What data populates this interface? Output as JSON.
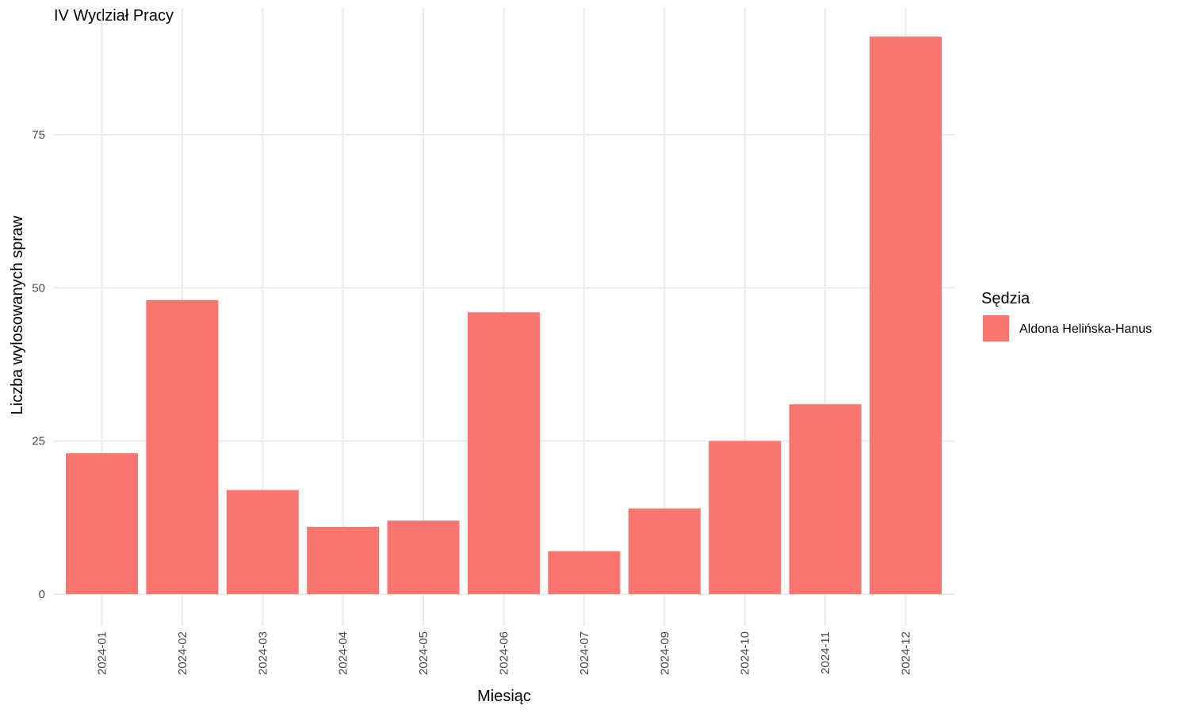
{
  "chart_data": {
    "type": "bar",
    "title": "IV Wydział Pracy",
    "xlabel": "Miesiąc",
    "ylabel": "Liczba wylosowanych spraw",
    "categories": [
      "2024-01",
      "2024-02",
      "2024-03",
      "2024-04",
      "2024-05",
      "2024-06",
      "2024-07",
      "2024-09",
      "2024-10",
      "2024-11",
      "2024-12"
    ],
    "series": [
      {
        "name": "Aldona Helińska-Hanus",
        "values": [
          23,
          48,
          17,
          11,
          12,
          46,
          7,
          14,
          25,
          31,
          91
        ]
      }
    ],
    "yticks": [
      0,
      25,
      50,
      75
    ],
    "ylim": [
      0,
      91
    ],
    "grid": true,
    "legend": {
      "title": "Sędzia",
      "placement": "right"
    },
    "colors": {
      "bar": "#F8766D",
      "grid": "#EBEBEB"
    }
  }
}
